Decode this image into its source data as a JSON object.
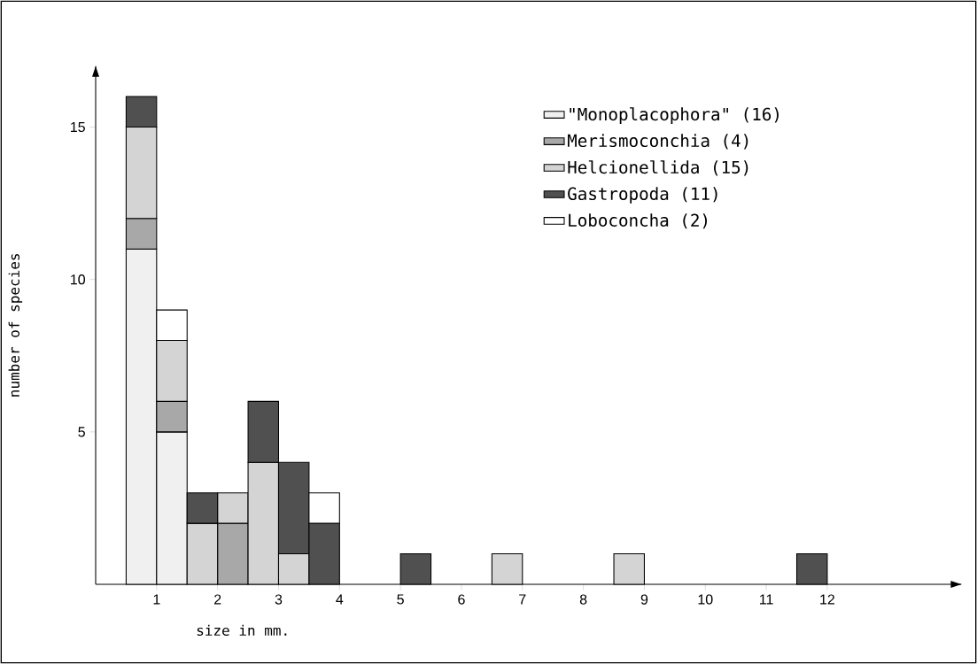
{
  "chart_data": {
    "type": "bar",
    "stacked": true,
    "xlabel": "size in mm.",
    "ylabel": "number of species",
    "x": [
      0.75,
      1.25,
      1.75,
      2.25,
      2.75,
      3.25,
      3.75,
      4.25,
      4.75,
      5.25,
      5.75,
      6.25,
      6.75,
      7.25,
      7.75,
      8.25,
      8.75,
      9.25,
      9.75,
      10.25,
      10.75,
      11.25,
      11.75
    ],
    "series": [
      {
        "name": "\"Monoplacophora\" (16)",
        "color": "#f0f0f0",
        "values": [
          11,
          5,
          0,
          0,
          0,
          0,
          0,
          0,
          0,
          0,
          0,
          0,
          0,
          0,
          0,
          0,
          0,
          0,
          0,
          0,
          0,
          0,
          0
        ]
      },
      {
        "name": "Merismoconchia (4)",
        "color": "#a8a8a8",
        "values": [
          1,
          1,
          0,
          2,
          0,
          0,
          0,
          0,
          0,
          0,
          0,
          0,
          0,
          0,
          0,
          0,
          0,
          0,
          0,
          0,
          0,
          0,
          0
        ]
      },
      {
        "name": "Helcionellida (15)",
        "color": "#d4d4d4",
        "values": [
          3,
          2,
          2,
          1,
          4,
          1,
          0,
          0,
          0,
          0,
          0,
          0,
          1,
          0,
          0,
          0,
          1,
          0,
          0,
          0,
          0,
          0,
          0
        ]
      },
      {
        "name": "Gastropoda (11)",
        "color": "#505050",
        "values": [
          1,
          0,
          1,
          0,
          2,
          3,
          2,
          0,
          0,
          1,
          0,
          0,
          0,
          0,
          0,
          0,
          0,
          0,
          0,
          0,
          0,
          0,
          1
        ]
      },
      {
        "name": "Loboconcha (2)",
        "color": "#ffffff",
        "values": [
          0,
          1,
          0,
          0,
          0,
          0,
          1,
          0,
          0,
          0,
          0,
          0,
          0,
          0,
          0,
          0,
          0,
          0,
          0,
          0,
          0,
          0,
          0
        ]
      }
    ],
    "xlim": [
      0,
      14.2
    ],
    "ylim": [
      0,
      17
    ],
    "xticks": [
      1,
      2,
      3,
      4,
      5,
      6,
      7,
      8,
      9,
      10,
      11,
      12
    ],
    "yticks": [
      5,
      10,
      15
    ],
    "grid": false,
    "legend": "top right"
  }
}
